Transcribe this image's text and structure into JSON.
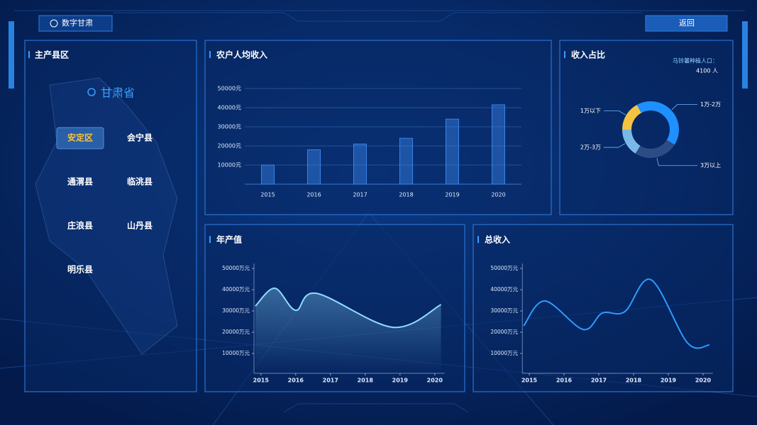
{
  "header": {
    "title": "数字甘肃",
    "back": "返回"
  },
  "region_panel": {
    "title": "主产县区",
    "province": "甘肃省",
    "counties": [
      "安定区",
      "会宁县",
      "通渭县",
      "临洮县",
      "庄浪县",
      "山丹县",
      "明乐县"
    ]
  },
  "chart_data": [
    {
      "type": "bar",
      "title": "农户人均收入",
      "categories": [
        "2015",
        "2016",
        "2017",
        "2018",
        "2019",
        "2020"
      ],
      "values": [
        10000,
        18000,
        21000,
        24000,
        34000,
        41500
      ],
      "color": "#3a82e6",
      "ylim": [
        0,
        50000
      ],
      "yticks": [
        {
          "value": 10000,
          "label": "10000元"
        },
        {
          "value": 20000,
          "label": "20000元"
        },
        {
          "value": 30000,
          "label": "30000元"
        },
        {
          "value": 40000,
          "label": "40000元"
        },
        {
          "value": 50000,
          "label": "50000元"
        }
      ],
      "grid": true
    },
    {
      "type": "pie",
      "title": "收入占比",
      "subtitle": "马铃薯种植人口：",
      "annotation": "4100 人",
      "categories": [
        "1万以下",
        "1万-2万",
        "3万以上",
        "2万-3万"
      ],
      "values": [
        17,
        42,
        25,
        16
      ],
      "colors": [
        "#f5c342",
        "#1e90ff",
        "#2b4c85",
        "#7ab8e8"
      ]
    },
    {
      "type": "line",
      "title": "年产值",
      "x": [
        2014.84,
        2015.4,
        2016.0,
        2016.6,
        2018.8,
        2020.18
      ],
      "values": [
        32300,
        40700,
        30300,
        38300,
        22300,
        33000
      ],
      "color": "#8fdcff",
      "area": true,
      "xlim": [
        2014.8,
        2020.2
      ],
      "xticks": [
        2015,
        2016,
        2017,
        2018,
        2019,
        2020
      ],
      "ylim": [
        0,
        50000
      ],
      "yticks": [
        {
          "value": 10000,
          "label": "10000万元"
        },
        {
          "value": 20000,
          "label": "20000万元"
        },
        {
          "value": 30000,
          "label": "30000万元"
        },
        {
          "value": 40000,
          "label": "40000万元"
        },
        {
          "value": 50000,
          "label": "50000万元"
        }
      ]
    },
    {
      "type": "line",
      "title": "总收入",
      "x": [
        2014.84,
        2015.45,
        2016.55,
        2017.1,
        2017.75,
        2018.5,
        2019.55,
        2020.18
      ],
      "values": [
        23000,
        34700,
        21300,
        29000,
        29700,
        44700,
        15000,
        14000
      ],
      "color": "#2e9bff",
      "area": false,
      "xlim": [
        2014.8,
        2020.2
      ],
      "xticks": [
        2015,
        2016,
        2017,
        2018,
        2019,
        2020
      ],
      "ylim": [
        0,
        50000
      ],
      "yticks": [
        {
          "value": 10000,
          "label": "10000万元"
        },
        {
          "value": 20000,
          "label": "20000万元"
        },
        {
          "value": 30000,
          "label": "30000万元"
        },
        {
          "value": 40000,
          "label": "40000万元"
        },
        {
          "value": 50000,
          "label": "50000万元"
        }
      ]
    }
  ]
}
